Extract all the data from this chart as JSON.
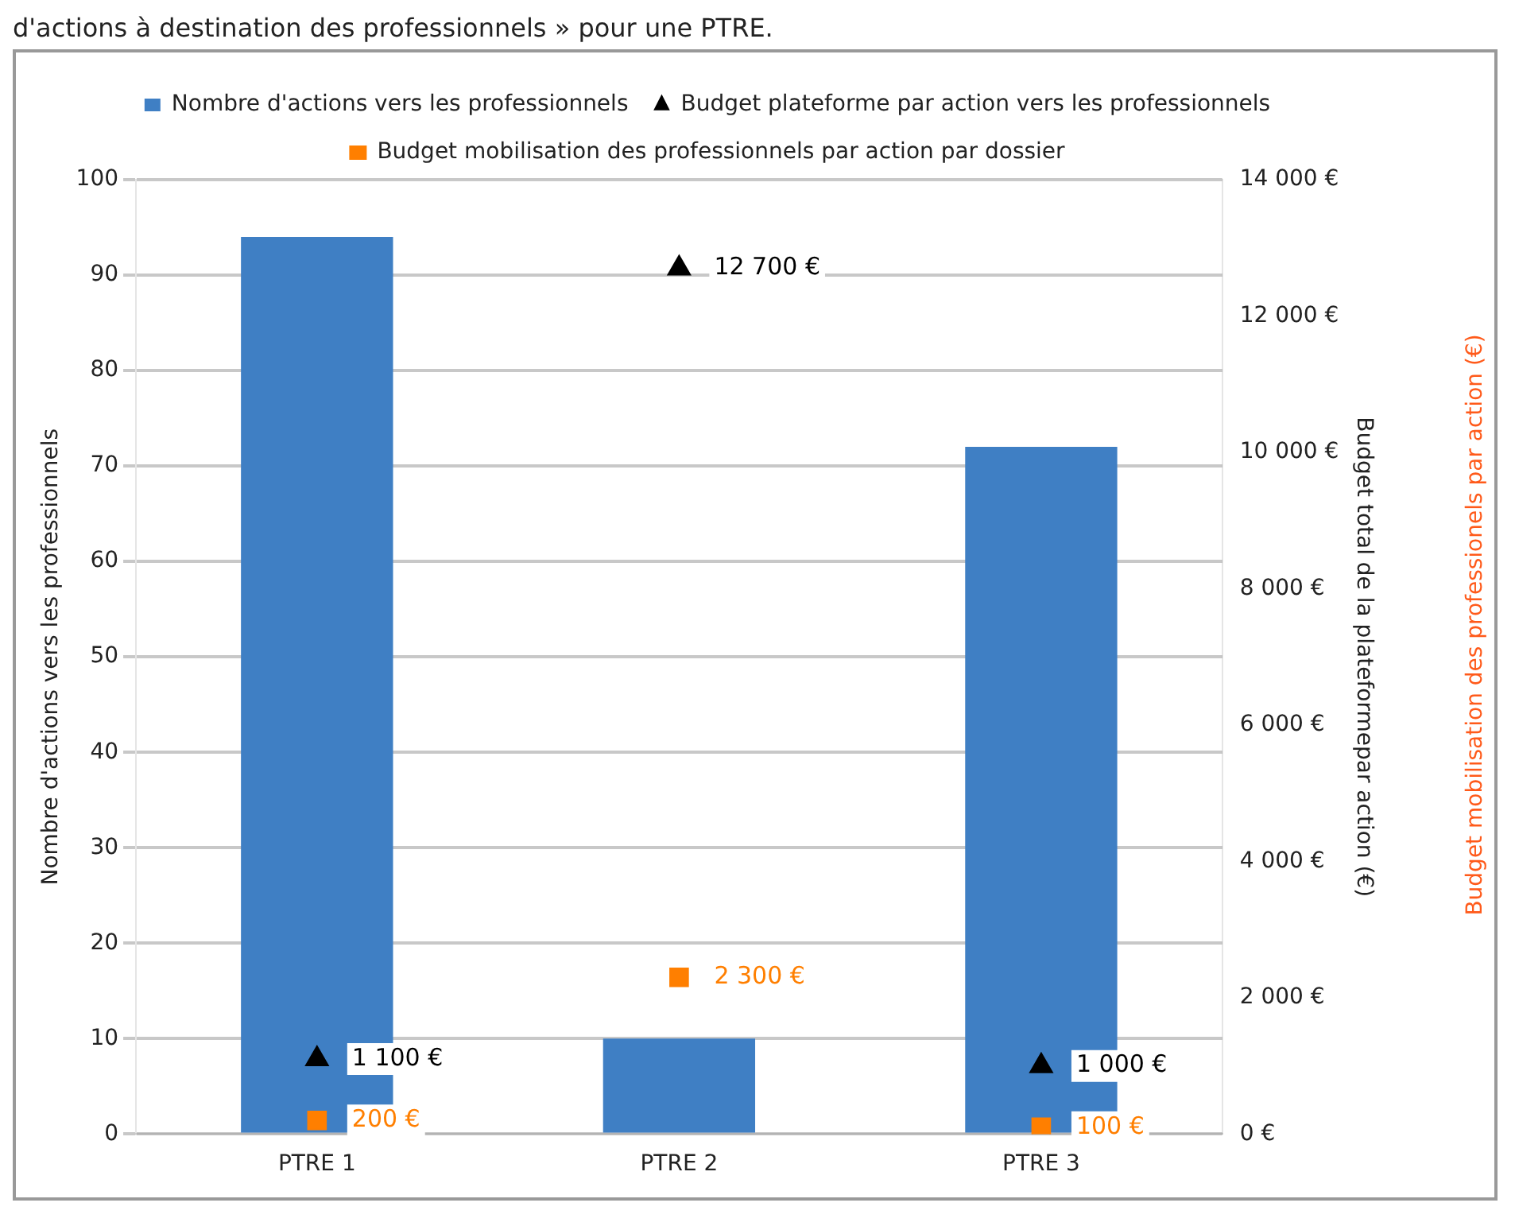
{
  "chart_data": {
    "type": "bar",
    "categories": [
      "PTRE 1",
      "PTRE 2",
      "PTRE 3"
    ],
    "series": [
      {
        "name": "Nombre d'actions vers les professionnels",
        "color": "#3f7fc4",
        "values": [
          94,
          10,
          72
        ]
      },
      {
        "name": "Budget plateforme par action vers les professionnels",
        "type": "scatter",
        "axis": "y2",
        "marker": "triangle",
        "color": "#000000",
        "values": [
          1100,
          12700,
          1000
        ],
        "value_labels": [
          "1 100 €",
          "12 700 €",
          "1 000 €"
        ]
      },
      {
        "name": "Budget mobilisation des professionnels par action par dossier",
        "type": "scatter",
        "axis": "y2",
        "marker": "square",
        "color": "#ff7f00",
        "values": [
          200,
          2300,
          100
        ],
        "value_labels": [
          "200 €",
          "2 300 €",
          "100 €"
        ]
      }
    ],
    "ylabel": "Nombre d'actions vers les professionnels",
    "y2label": "Budget total de la plateformepar action (€)",
    "ylim": [
      0,
      100
    ],
    "yticks": [
      0,
      10,
      20,
      30,
      40,
      50,
      60,
      70,
      80,
      90,
      100
    ],
    "y2lim": [
      0,
      14000
    ],
    "y2ticks": [
      {
        "value": 0,
        "label": "0 €"
      },
      {
        "value": 2000,
        "label": "2 000 €"
      },
      {
        "value": 4000,
        "label": "4 000 €"
      },
      {
        "value": 6000,
        "label": "6 000 €"
      },
      {
        "value": 8000,
        "label": "8 000 €"
      },
      {
        "value": 10000,
        "label": "10 000 €"
      },
      {
        "value": 12000,
        "label": "12 000 €"
      },
      {
        "value": 14000,
        "label": "14 000 €"
      }
    ],
    "grid": "y",
    "legend": "top",
    "annotations": [
      "d'actions à destination des professionnels » pour une PTRE.",
      "Budget mobilisation des professionels par action (€)"
    ]
  }
}
